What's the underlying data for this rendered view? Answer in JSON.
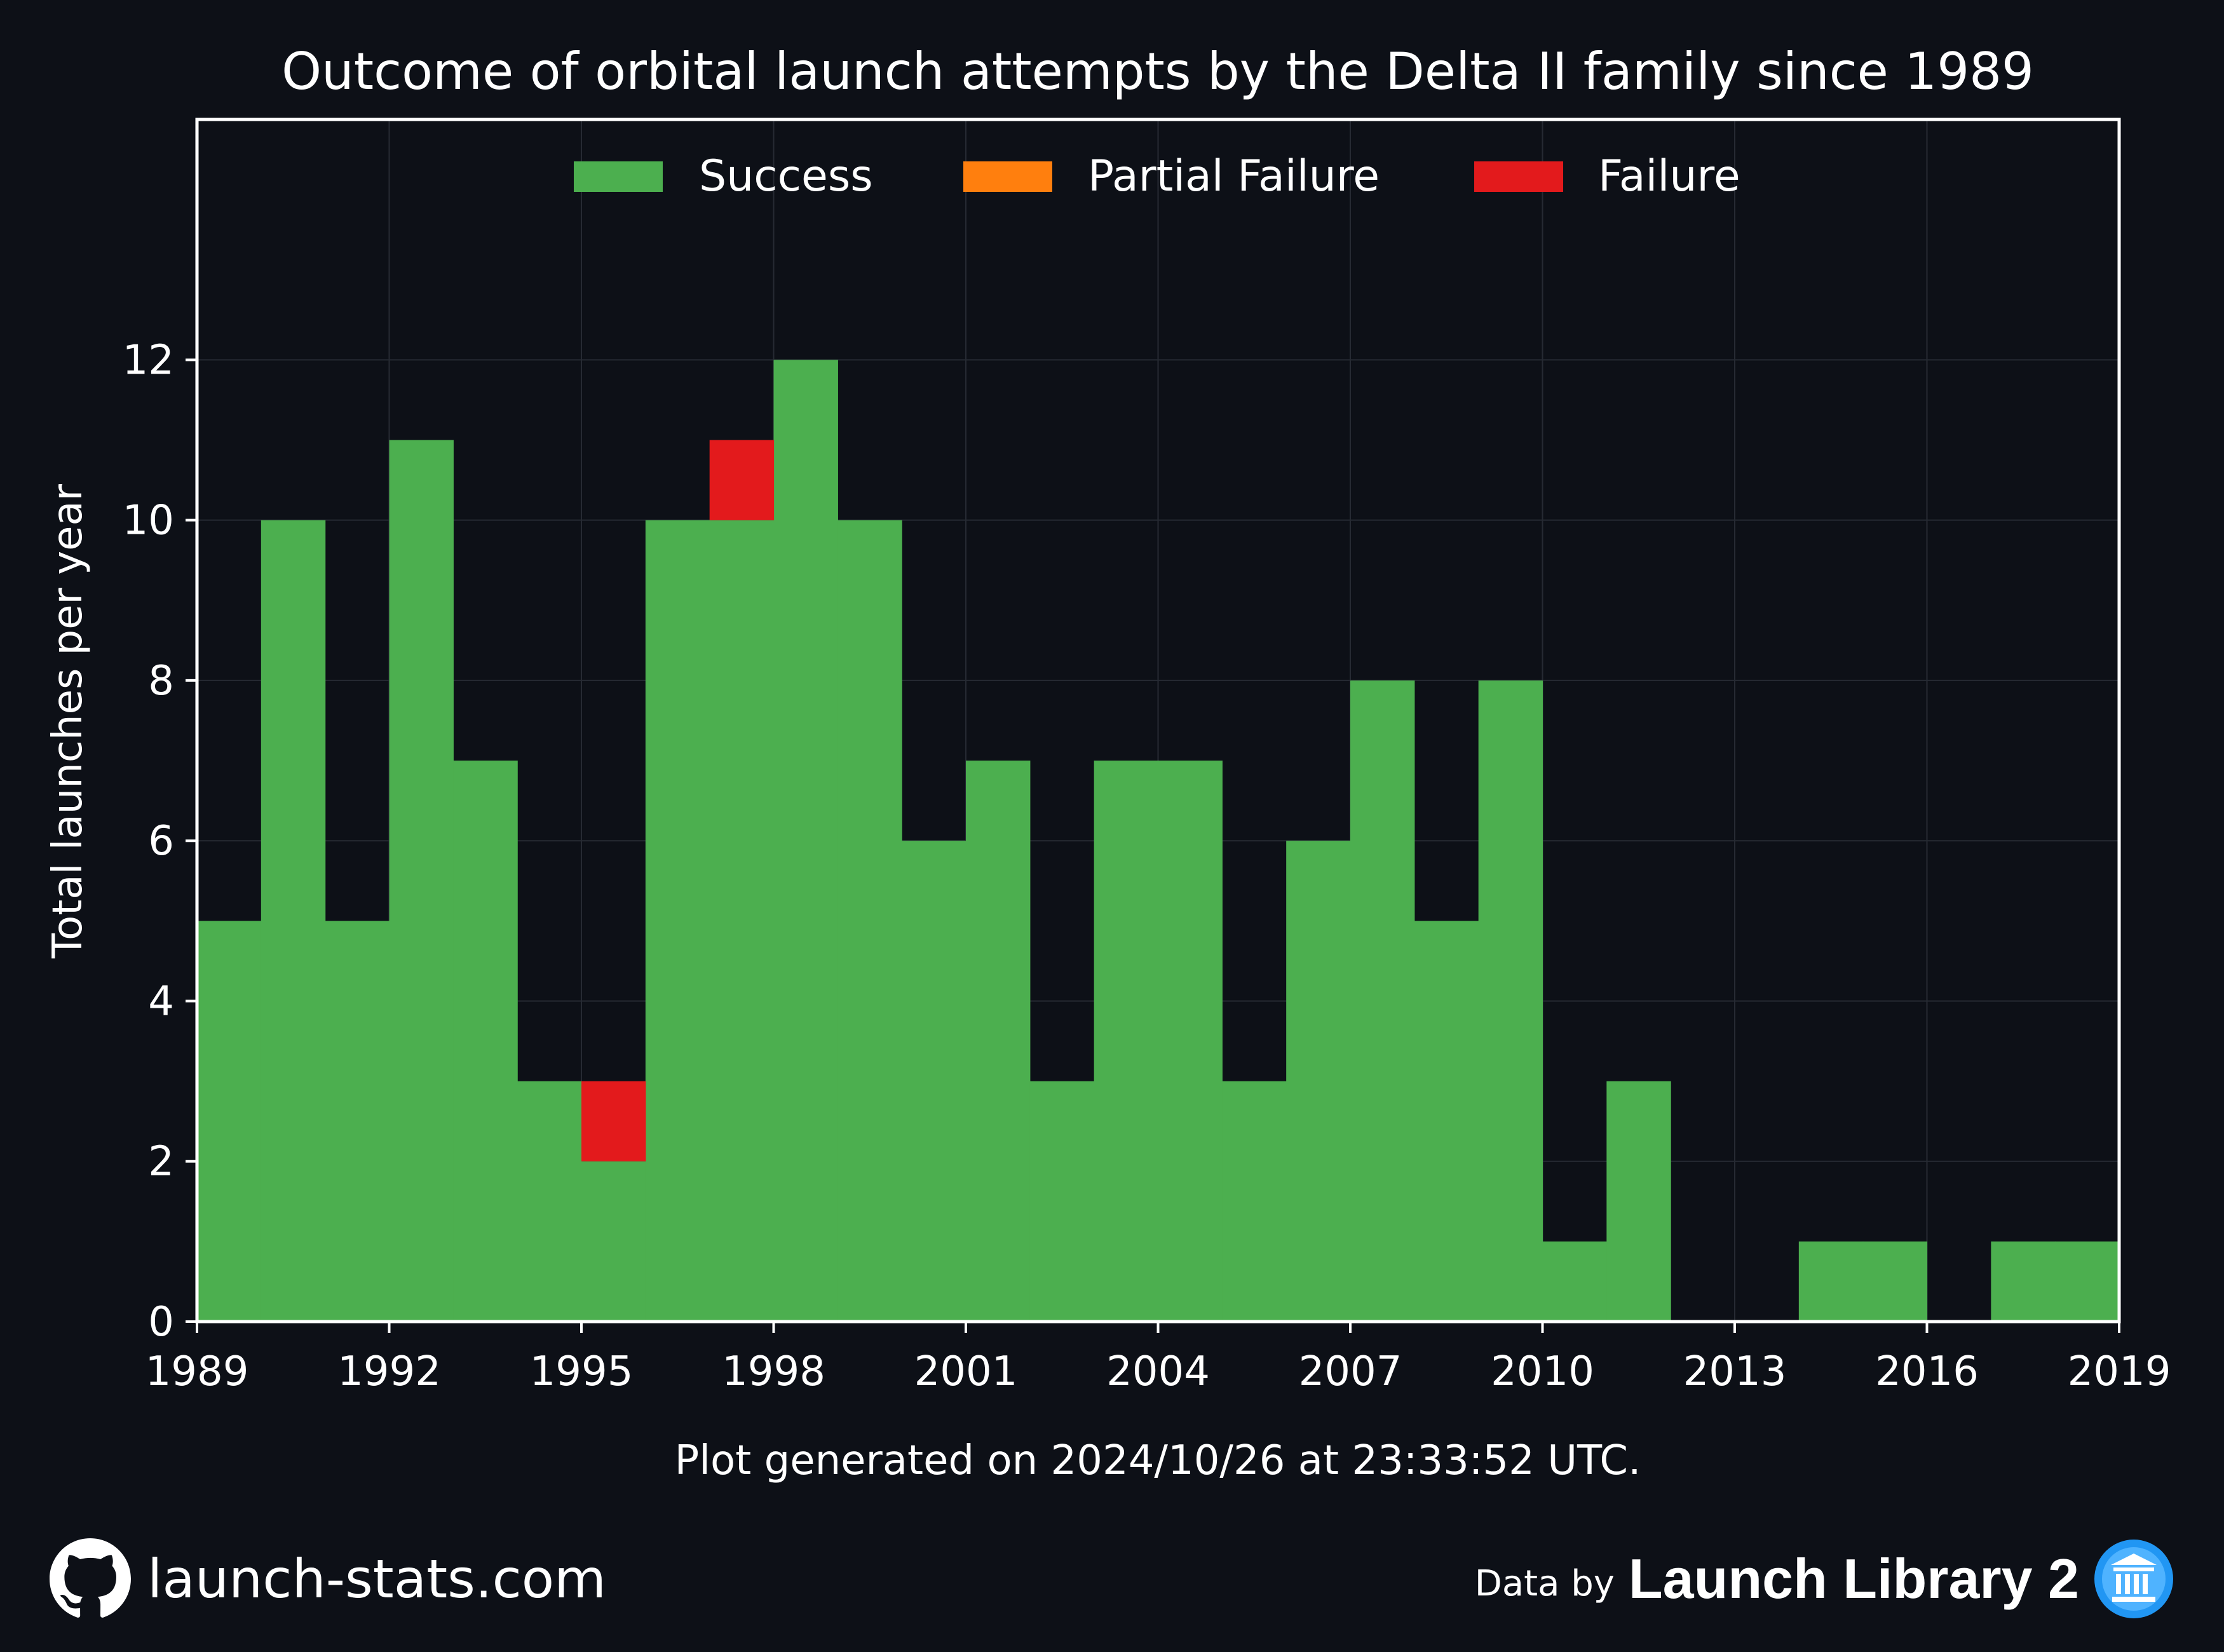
{
  "title": "Outcome of orbital launch attempts by the Delta II family since 1989",
  "footnote": "Plot generated on 2024/10/26 at 23:33:52 UTC.",
  "footer": {
    "site": "launch-stats.com",
    "credit_prefix": "Data by",
    "credit_name": "Launch Library 2",
    "site_icon": "github-icon",
    "credit_icon": "library-icon"
  },
  "colors": {
    "background": "#0d1017",
    "success": "#4caf4f",
    "partial_failure": "#ff7f0e",
    "failure": "#e31a1c",
    "grid": "#262a33",
    "footnote": "#6e6e6e"
  },
  "chart_data": {
    "type": "bar",
    "stacked": true,
    "title": "Outcome of orbital launch attempts by the Delta II family since 1989",
    "xlabel": "",
    "ylabel": "Total launches per year",
    "xlim": [
      1989,
      2019
    ],
    "ylim": [
      0,
      15
    ],
    "xticks": [
      1989,
      1992,
      1995,
      1998,
      2001,
      2004,
      2007,
      2010,
      2013,
      2016,
      2019
    ],
    "yticks": [
      0,
      2,
      4,
      6,
      8,
      10,
      12
    ],
    "grid": true,
    "legend_position": "top-center",
    "categories": [
      1989,
      1990,
      1991,
      1992,
      1993,
      1994,
      1995,
      1996,
      1997,
      1998,
      1999,
      2000,
      2001,
      2002,
      2003,
      2004,
      2005,
      2006,
      2007,
      2008,
      2009,
      2010,
      2011,
      2012,
      2013,
      2014,
      2015,
      2016,
      2017,
      2018
    ],
    "series": [
      {
        "name": "Success",
        "color": "#4caf4f",
        "values": [
          5,
          10,
          5,
          11,
          7,
          3,
          2,
          10,
          10,
          12,
          10,
          6,
          7,
          3,
          7,
          7,
          3,
          6,
          8,
          5,
          8,
          1,
          3,
          0,
          0,
          1,
          1,
          0,
          1,
          1
        ]
      },
      {
        "name": "Partial Failure",
        "color": "#ff7f0e",
        "values": [
          0,
          0,
          0,
          0,
          0,
          0,
          0,
          0,
          0,
          0,
          0,
          0,
          0,
          0,
          0,
          0,
          0,
          0,
          0,
          0,
          0,
          0,
          0,
          0,
          0,
          0,
          0,
          0,
          0,
          0
        ]
      },
      {
        "name": "Failure",
        "color": "#e31a1c",
        "values": [
          0,
          0,
          0,
          0,
          0,
          0,
          1,
          0,
          1,
          0,
          0,
          0,
          0,
          0,
          0,
          0,
          0,
          0,
          0,
          0,
          0,
          0,
          0,
          0,
          0,
          0,
          0,
          0,
          0,
          0
        ]
      }
    ]
  }
}
